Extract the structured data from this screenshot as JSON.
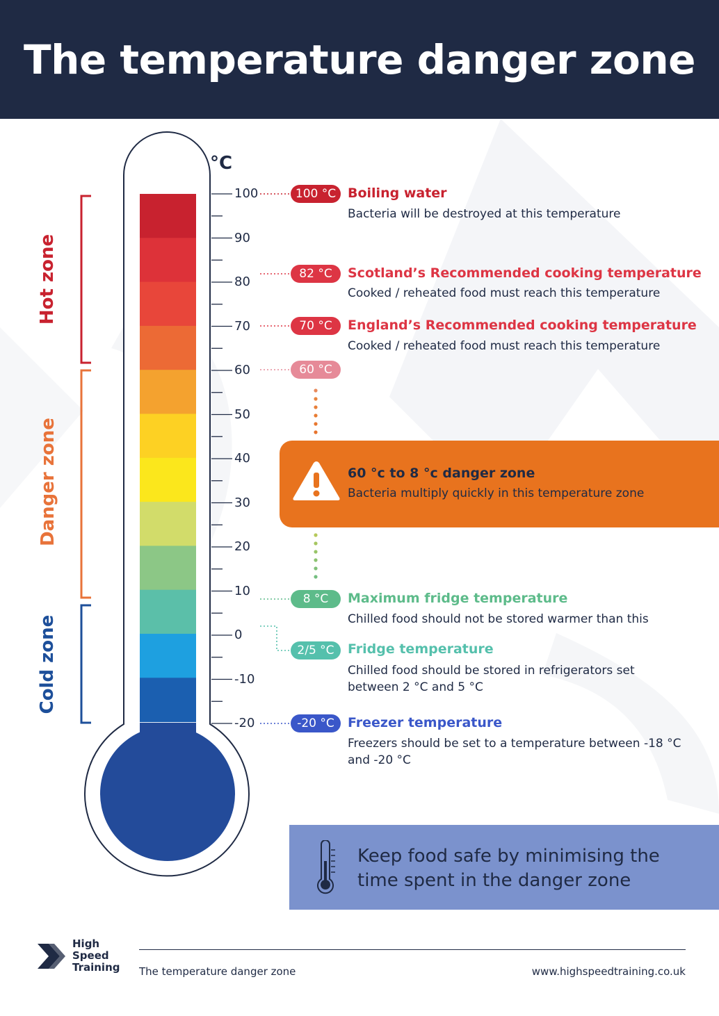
{
  "header": {
    "title": "The temperature danger zone"
  },
  "thermometer": {
    "unit": "°C",
    "ticks": [
      "100",
      "90",
      "80",
      "70",
      "60",
      "50",
      "40",
      "30",
      "20",
      "10",
      "0",
      "-10",
      "-20"
    ],
    "band_colors": [
      "#c8222f",
      "#dd3239",
      "#e8463a",
      "#ec6a35",
      "#f4a22f",
      "#fdd123",
      "#fbe71c",
      "#d2dc6a",
      "#8cc786",
      "#5bbfa9",
      "#1ea0e0",
      "#1b5fb0"
    ],
    "bulb_color": "#234b9a"
  },
  "zones": {
    "hot": {
      "label": "Hot zone",
      "color": "#c8222f"
    },
    "danger": {
      "label": "Danger zone",
      "color": "#e8733a"
    },
    "cold": {
      "label": "Cold zone",
      "color": "#1d4f9a"
    }
  },
  "annotations": [
    {
      "pill": "100 °C",
      "color": "#c8222f",
      "title": "Boiling water",
      "desc": "Bacteria will be destroyed at this temperature"
    },
    {
      "pill": "82 °C",
      "color": "#dd3544",
      "title": "Scotland’s Recommended cooking temperature",
      "desc": "Cooked / reheated food must reach this temperature"
    },
    {
      "pill": "70 °C",
      "color": "#dd3544",
      "title": "England’s Recommended cooking temperature",
      "desc": "Cooked / reheated food must reach this temperature"
    },
    {
      "pill": "60 °C",
      "color": "#e68a98",
      "title": "",
      "desc": ""
    },
    {
      "pill": "8 °C",
      "color": "#5dbb8a",
      "title": "Maximum fridge temperature",
      "desc": "Chilled food should not be stored warmer than this"
    },
    {
      "pill": "2/5 °C",
      "color": "#55c0ac",
      "title": "Fridge temperature",
      "desc": "Chilled food should be stored in refrigerators set between 2 °C and 5 °C"
    },
    {
      "pill": "-20 °C",
      "color": "#3a57c9",
      "title": "Freezer temperature",
      "desc": "Freezers should be set to a temperature between -18 °C and -20 °C"
    }
  ],
  "danger_box": {
    "title": "60 °c to 8 °c danger zone",
    "desc": "Bacteria multiply quickly in this temperature zone",
    "color": "#e8731e"
  },
  "tip": {
    "text": "Keep food safe by minimising the time spent in the danger zone",
    "color": "#7b92cd"
  },
  "footer": {
    "left": "The temperature danger zone",
    "right": "www.highspeedtraining.co.uk",
    "logo_lines": [
      "High",
      "Speed",
      "Training"
    ]
  }
}
